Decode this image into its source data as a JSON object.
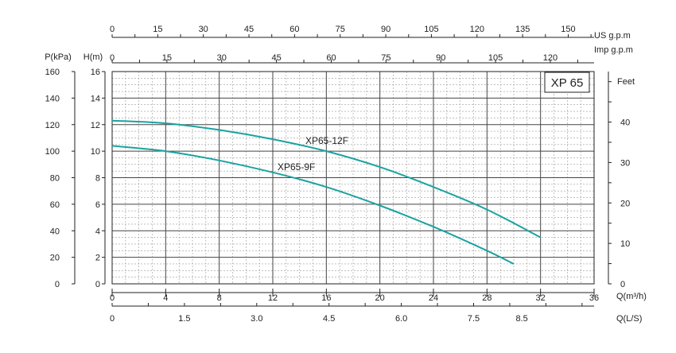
{
  "chart_data": {
    "type": "line",
    "title": "XP 65",
    "grid": true,
    "x_axis": {
      "label": "Q(m³/h)",
      "range": [
        0,
        36
      ],
      "ticks": [
        "0",
        "4",
        "8",
        "12",
        "16",
        "20",
        "24",
        "28",
        "32",
        "36"
      ]
    },
    "y_axis": {
      "label": "H(m)",
      "range": [
        0,
        16
      ],
      "ticks": [
        "0",
        "2",
        "4",
        "6",
        "8",
        "10",
        "12",
        "14",
        "16"
      ]
    },
    "secondary_axes": {
      "pressure": {
        "label": "P(kPa)",
        "ticks": [
          "0",
          "20",
          "40",
          "60",
          "80",
          "100",
          "120",
          "140",
          "160"
        ]
      },
      "feet": {
        "label": "Feet",
        "ticks": [
          "0",
          "10",
          "20",
          "30",
          "40"
        ],
        "values": [
          0,
          10,
          20,
          30,
          40
        ]
      },
      "ls": {
        "label": "Q(L/S)",
        "ticks": [
          "0",
          "1.5",
          "3.0",
          "4.5",
          "6.0",
          "7.5",
          "8.5"
        ],
        "values": [
          0,
          1.5,
          3.0,
          4.5,
          6.0,
          7.5,
          8.5
        ]
      },
      "us_gpm": {
        "label": "US  g.p.m",
        "ticks": [
          "0",
          "15",
          "30",
          "45",
          "60",
          "75",
          "90",
          "105",
          "120",
          "135",
          "150"
        ],
        "values": [
          0,
          15,
          30,
          45,
          60,
          75,
          90,
          105,
          120,
          135,
          150
        ]
      },
      "imp_gpm": {
        "label": "Imp  g.p.m",
        "ticks": [
          "0",
          "15",
          "30",
          "45",
          "60",
          "75",
          "90",
          "105",
          "120"
        ],
        "values": [
          0,
          15,
          30,
          45,
          60,
          75,
          90,
          105,
          120
        ]
      }
    },
    "series": [
      {
        "name": "XP65-12F",
        "color": "#1aa3a0",
        "x": [
          0,
          4,
          8,
          12,
          16,
          20,
          24,
          28,
          32
        ],
        "y": [
          12.3,
          12.1,
          11.6,
          10.9,
          10.0,
          8.8,
          7.3,
          5.6,
          3.5
        ]
      },
      {
        "name": "XP65-9F",
        "color": "#1aa3a0",
        "x": [
          0,
          4,
          8,
          12,
          16,
          20,
          24,
          28,
          30
        ],
        "y": [
          10.4,
          10.0,
          9.3,
          8.4,
          7.3,
          5.9,
          4.3,
          2.5,
          1.5
        ]
      }
    ]
  }
}
